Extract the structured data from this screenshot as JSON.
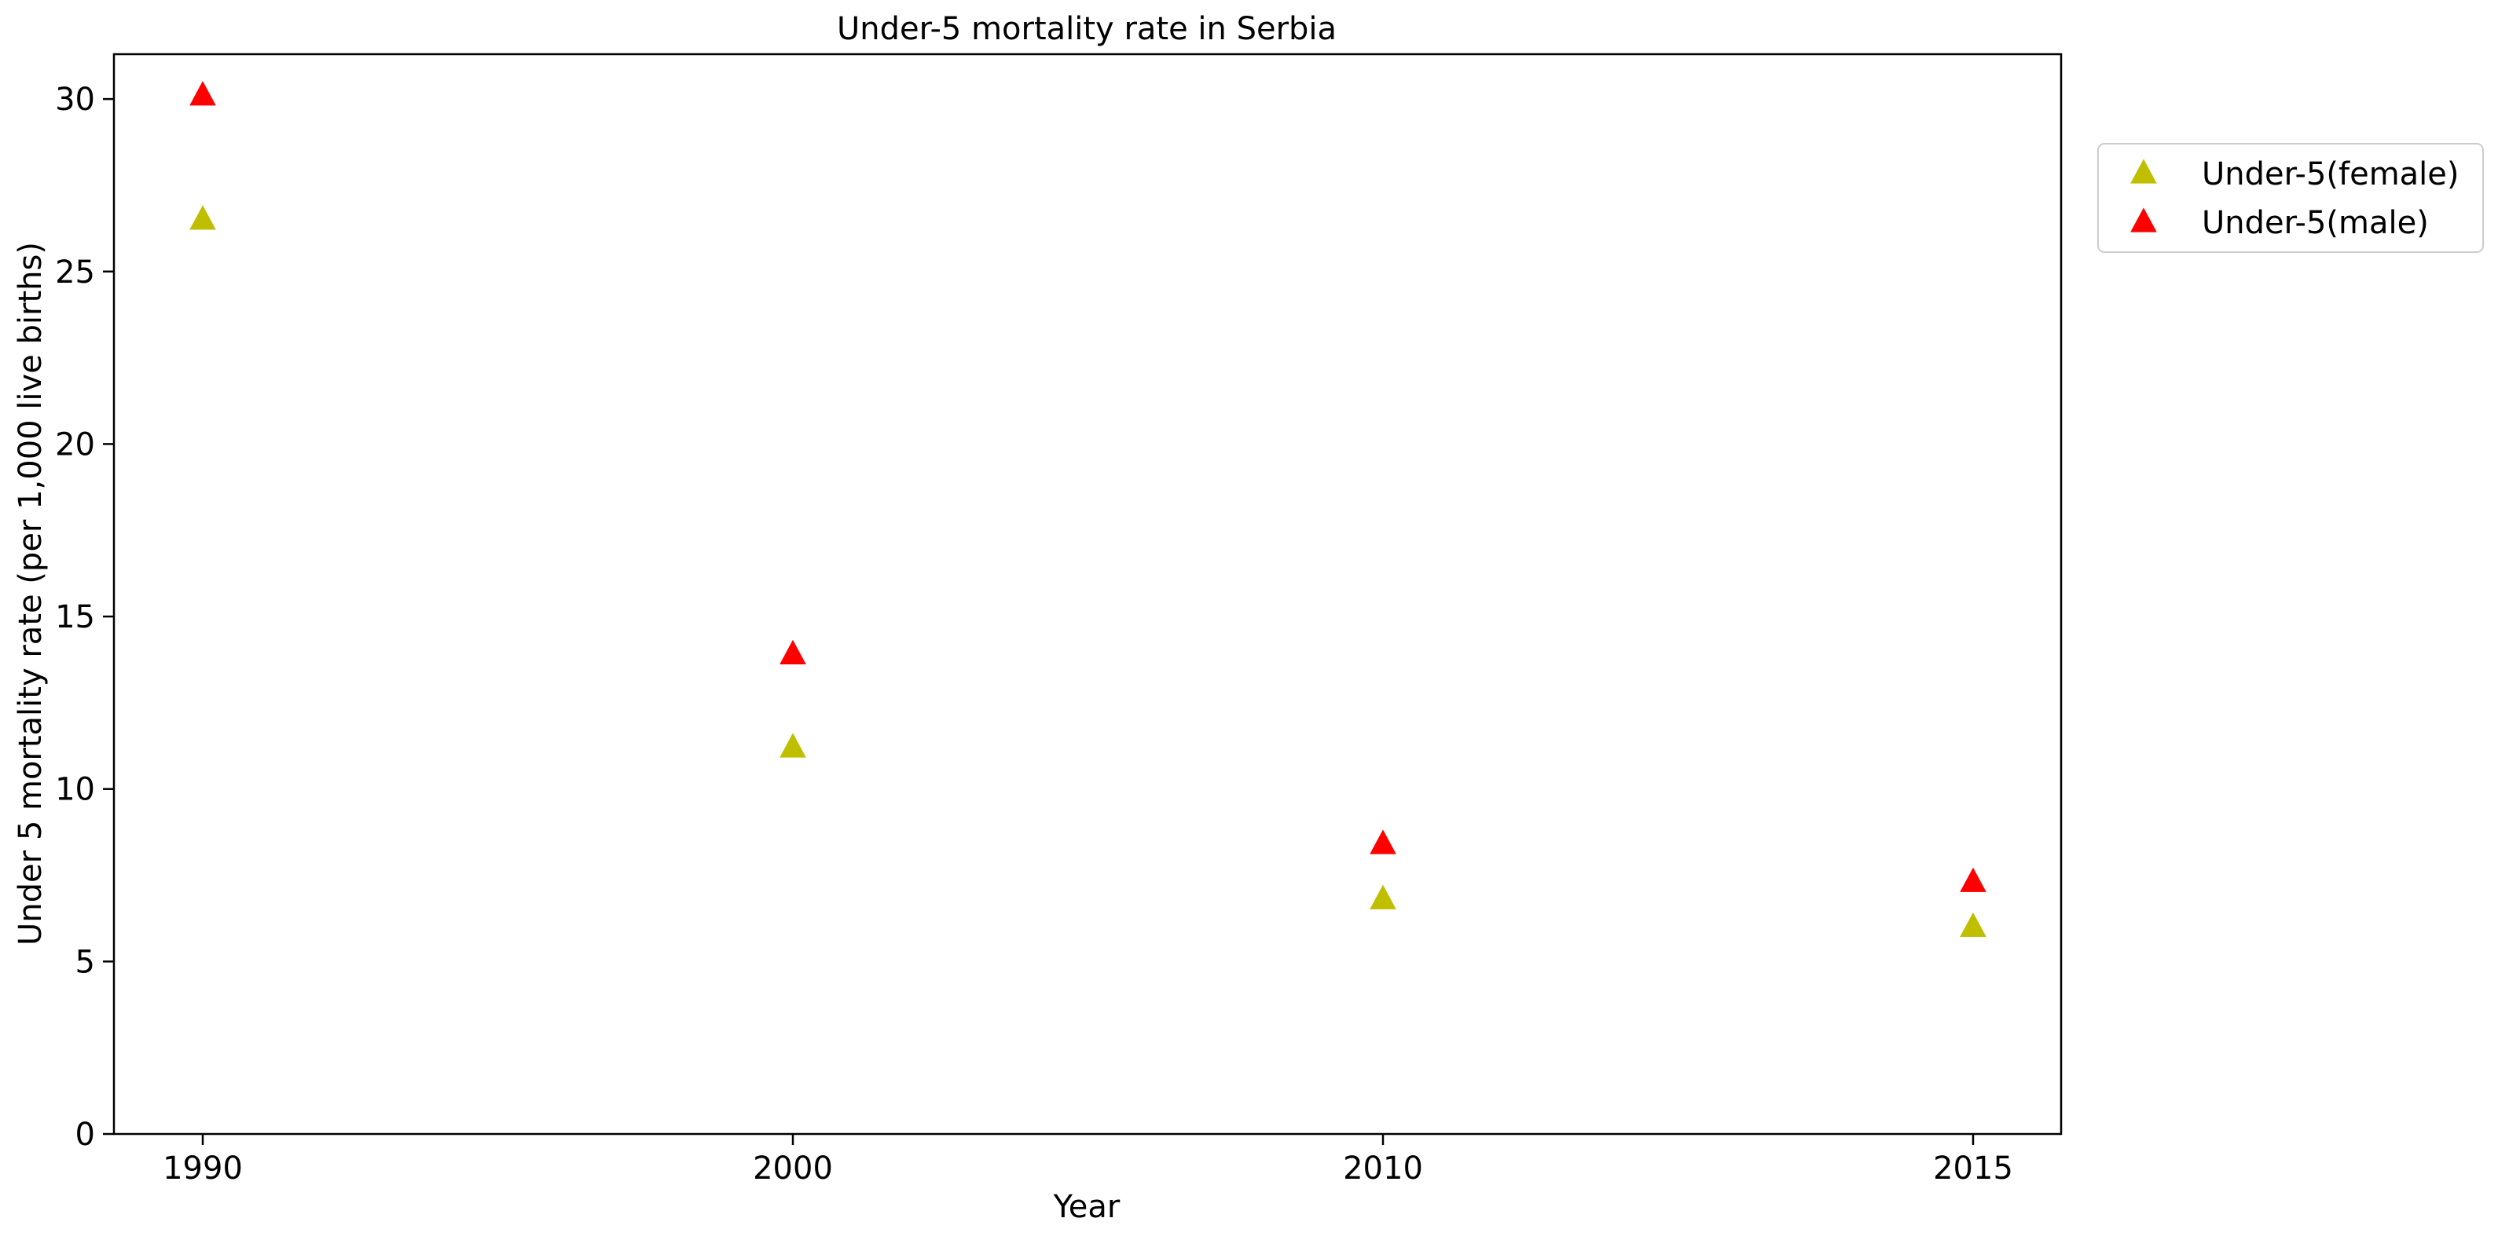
{
  "chart_data": {
    "type": "scatter",
    "title": "Under-5 mortality rate in Serbia",
    "xlabel": "Year",
    "ylabel": "Under 5 mortality rate (per 1,000 live births)",
    "categories": [
      "1990",
      "2000",
      "2010",
      "2015"
    ],
    "ylim": [
      0,
      31.3
    ],
    "yticks": [
      "0",
      "5",
      "10",
      "15",
      "20",
      "25",
      "30"
    ],
    "grid": false,
    "legend_position": "outside-upper-right",
    "marker": "triangle",
    "series": [
      {
        "name": "Under-5(female)",
        "color": "#bfbf00",
        "values": [
          26.5,
          11.2,
          6.8,
          6.0
        ]
      },
      {
        "name": "Under-5(male)",
        "color": "#ff0000",
        "values": [
          30.1,
          13.9,
          8.4,
          7.3
        ]
      }
    ]
  }
}
